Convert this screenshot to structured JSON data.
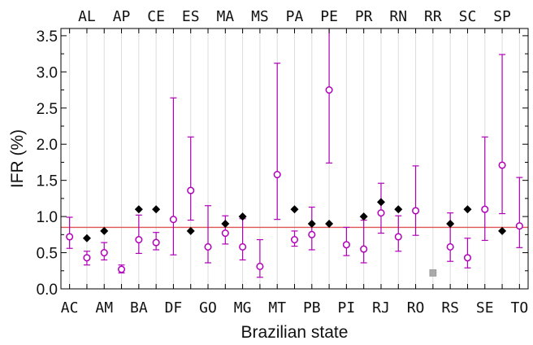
{
  "chart_data": {
    "type": "scatter",
    "title": "",
    "xlabel": "Brazilian state",
    "ylabel": "IFR  (%)",
    "ylim": [
      0,
      3.6
    ],
    "yticks": [
      0.0,
      0.5,
      1.0,
      1.5,
      2.0,
      2.5,
      3.0,
      3.5
    ],
    "ytick_labels": [
      "0.0",
      "0.5",
      "1.0",
      "1.5",
      "2.0",
      "2.5",
      "3.0",
      "3.5"
    ],
    "grid": "vertical",
    "categories": [
      "AC",
      "AL",
      "AM",
      "AP",
      "BA",
      "CE",
      "DF",
      "ES",
      "GO",
      "MA",
      "MG",
      "MS",
      "MT",
      "PA",
      "PB",
      "PE",
      "PI",
      "PR",
      "RJ",
      "RN",
      "RO",
      "RR",
      "RS",
      "SC",
      "SE",
      "SP",
      "TO"
    ],
    "bottom_tick_labels": [
      "AC",
      "AM",
      "BA",
      "DF",
      "GO",
      "MG",
      "MT",
      "PB",
      "PI",
      "RJ",
      "RO",
      "RS",
      "SE",
      "TO"
    ],
    "top_tick_labels": [
      "AL",
      "AP",
      "CE",
      "ES",
      "MA",
      "MS",
      "PA",
      "PE",
      "PR",
      "RN",
      "RR",
      "SC",
      "SP"
    ],
    "reference_line": {
      "y": 0.85,
      "color": "#e05555"
    },
    "series": [
      {
        "marker": "open-circle",
        "color": "#b000b8",
        "values": [
          0.72,
          0.43,
          0.5,
          0.27,
          0.68,
          0.64,
          0.96,
          1.36,
          0.58,
          0.77,
          0.58,
          0.31,
          1.58,
          0.68,
          0.75,
          2.75,
          0.61,
          0.55,
          1.05,
          0.72,
          1.08,
          null,
          0.58,
          0.43,
          1.1,
          1.71,
          0.87
        ],
        "lower": [
          0.56,
          0.33,
          0.4,
          0.22,
          0.49,
          0.54,
          0.47,
          0.95,
          0.36,
          0.62,
          0.4,
          0.16,
          0.96,
          0.59,
          0.54,
          1.74,
          0.46,
          0.36,
          0.77,
          0.52,
          0.74,
          null,
          0.38,
          0.29,
          0.67,
          1.04,
          0.57
        ],
        "upper": [
          0.99,
          0.52,
          0.64,
          0.33,
          1.02,
          0.78,
          2.64,
          2.1,
          1.15,
          1.01,
          0.97,
          0.68,
          3.12,
          0.8,
          1.13,
          3.6,
          0.85,
          0.95,
          1.46,
          1.01,
          1.7,
          null,
          1.05,
          0.7,
          2.1,
          3.24,
          1.54
        ]
      },
      {
        "marker": "filled-diamond",
        "color": "#000000",
        "values": [
          null,
          0.7,
          0.8,
          null,
          1.1,
          1.1,
          null,
          0.8,
          null,
          0.9,
          1.0,
          null,
          null,
          1.1,
          0.9,
          0.9,
          null,
          1.0,
          1.2,
          1.1,
          null,
          null,
          0.9,
          1.1,
          null,
          0.8,
          null
        ]
      },
      {
        "marker": "filled-square",
        "color": "#aaaaaa",
        "values": [
          null,
          null,
          null,
          null,
          null,
          null,
          null,
          null,
          null,
          null,
          null,
          null,
          null,
          null,
          null,
          null,
          null,
          null,
          null,
          null,
          null,
          0.22,
          null,
          null,
          null,
          null,
          null
        ]
      }
    ]
  }
}
